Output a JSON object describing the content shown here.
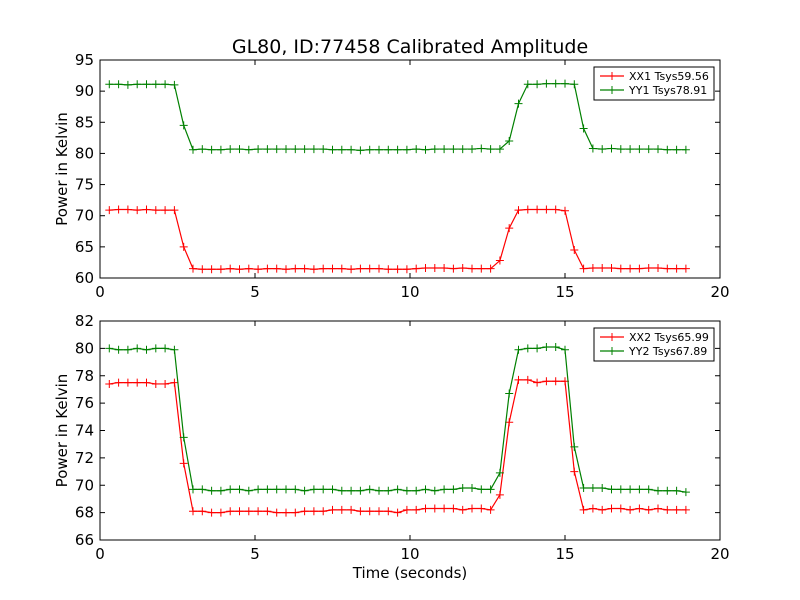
{
  "chart_data": {
    "title": "GL80, ID:77458 Calibrated Amplitude",
    "type": "line",
    "subplots": [
      {
        "type": "line",
        "ylabel": "Power in Kelvin",
        "xlabel": "",
        "xlim": [
          0,
          20
        ],
        "ylim": [
          60,
          95
        ],
        "xticks": [
          0,
          5,
          10,
          15,
          20
        ],
        "yticks": [
          60,
          65,
          70,
          75,
          80,
          85,
          90,
          95
        ],
        "legend_position": "top-right",
        "grid": false,
        "x": [
          0.3,
          0.6,
          0.9,
          1.2,
          1.5,
          1.8,
          2.1,
          2.4,
          2.7,
          3.0,
          3.3,
          3.6,
          3.9,
          4.2,
          4.5,
          4.8,
          5.1,
          5.4,
          5.7,
          6.0,
          6.3,
          6.6,
          6.9,
          7.2,
          7.5,
          7.8,
          8.1,
          8.4,
          8.7,
          9.0,
          9.3,
          9.6,
          9.9,
          10.2,
          10.5,
          10.8,
          11.1,
          11.4,
          11.7,
          12.0,
          12.3,
          12.6,
          12.9,
          13.2,
          13.5,
          13.8,
          14.1,
          14.4,
          14.7,
          15.0,
          15.3,
          15.6,
          15.9,
          16.2,
          16.5,
          16.8,
          17.1,
          17.4,
          17.7,
          18.0,
          18.3,
          18.6,
          18.9
        ],
        "series": [
          {
            "name": "XX1 Tsys59.56",
            "color": "#ff0000",
            "values": [
              70.9,
              71.0,
              71.0,
              70.9,
              71.0,
              70.9,
              70.9,
              70.9,
              65.0,
              61.5,
              61.4,
              61.4,
              61.4,
              61.5,
              61.4,
              61.5,
              61.4,
              61.5,
              61.5,
              61.4,
              61.5,
              61.5,
              61.4,
              61.5,
              61.5,
              61.5,
              61.4,
              61.5,
              61.5,
              61.5,
              61.4,
              61.4,
              61.4,
              61.5,
              61.6,
              61.6,
              61.6,
              61.5,
              61.6,
              61.5,
              61.5,
              61.5,
              62.8,
              68.0,
              70.9,
              71.0,
              71.0,
              71.0,
              71.0,
              70.8,
              64.5,
              61.5,
              61.6,
              61.6,
              61.6,
              61.5,
              61.5,
              61.5,
              61.6,
              61.6,
              61.5,
              61.5,
              61.5
            ]
          },
          {
            "name": "YY1 Tsys78.91",
            "color": "#008000",
            "values": [
              91.1,
              91.1,
              91.0,
              91.1,
              91.1,
              91.1,
              91.1,
              91.0,
              84.5,
              80.6,
              80.7,
              80.6,
              80.6,
              80.7,
              80.7,
              80.6,
              80.7,
              80.7,
              80.7,
              80.7,
              80.7,
              80.7,
              80.7,
              80.7,
              80.6,
              80.6,
              80.6,
              80.5,
              80.6,
              80.6,
              80.6,
              80.6,
              80.6,
              80.7,
              80.6,
              80.7,
              80.7,
              80.7,
              80.7,
              80.7,
              80.8,
              80.7,
              80.7,
              82.0,
              88.0,
              91.1,
              91.1,
              91.2,
              91.2,
              91.2,
              91.1,
              84.0,
              80.8,
              80.7,
              80.8,
              80.7,
              80.7,
              80.7,
              80.7,
              80.7,
              80.6,
              80.6,
              80.6
            ]
          }
        ]
      },
      {
        "type": "line",
        "ylabel": "Power in Kelvin",
        "xlabel": "Time (seconds)",
        "xlim": [
          0,
          20
        ],
        "ylim": [
          66,
          82
        ],
        "xticks": [
          0,
          5,
          10,
          15,
          20
        ],
        "yticks": [
          66,
          68,
          70,
          72,
          74,
          76,
          78,
          80,
          82
        ],
        "legend_position": "top-right",
        "grid": false,
        "x": [
          0.3,
          0.6,
          0.9,
          1.2,
          1.5,
          1.8,
          2.1,
          2.4,
          2.7,
          3.0,
          3.3,
          3.6,
          3.9,
          4.2,
          4.5,
          4.8,
          5.1,
          5.4,
          5.7,
          6.0,
          6.3,
          6.6,
          6.9,
          7.2,
          7.5,
          7.8,
          8.1,
          8.4,
          8.7,
          9.0,
          9.3,
          9.6,
          9.9,
          10.2,
          10.5,
          10.8,
          11.1,
          11.4,
          11.7,
          12.0,
          12.3,
          12.6,
          12.9,
          13.2,
          13.5,
          13.8,
          14.1,
          14.4,
          14.7,
          15.0,
          15.3,
          15.6,
          15.9,
          16.2,
          16.5,
          16.8,
          17.1,
          17.4,
          17.7,
          18.0,
          18.3,
          18.6,
          18.9
        ],
        "series": [
          {
            "name": "XX2 Tsys65.99",
            "color": "#ff0000",
            "values": [
              77.4,
              77.5,
              77.5,
              77.5,
              77.5,
              77.4,
              77.4,
              77.5,
              71.6,
              68.1,
              68.1,
              68.0,
              68.0,
              68.1,
              68.1,
              68.1,
              68.1,
              68.1,
              68.0,
              68.0,
              68.0,
              68.1,
              68.1,
              68.1,
              68.2,
              68.2,
              68.2,
              68.1,
              68.1,
              68.1,
              68.1,
              68.0,
              68.2,
              68.2,
              68.3,
              68.3,
              68.3,
              68.3,
              68.2,
              68.3,
              68.3,
              68.2,
              69.3,
              74.6,
              77.7,
              77.7,
              77.5,
              77.6,
              77.6,
              77.6,
              71.0,
              68.2,
              68.3,
              68.2,
              68.3,
              68.3,
              68.2,
              68.3,
              68.2,
              68.3,
              68.2,
              68.2,
              68.2
            ]
          },
          {
            "name": "YY2 Tsys67.89",
            "color": "#008000",
            "values": [
              80.0,
              79.9,
              79.9,
              80.0,
              79.9,
              80.0,
              80.0,
              79.9,
              73.5,
              69.7,
              69.7,
              69.6,
              69.6,
              69.7,
              69.7,
              69.6,
              69.7,
              69.7,
              69.7,
              69.7,
              69.7,
              69.6,
              69.7,
              69.7,
              69.7,
              69.6,
              69.6,
              69.6,
              69.7,
              69.6,
              69.6,
              69.7,
              69.6,
              69.6,
              69.7,
              69.6,
              69.7,
              69.7,
              69.8,
              69.8,
              69.7,
              69.7,
              70.9,
              76.7,
              79.9,
              80.0,
              80.0,
              80.1,
              80.1,
              79.9,
              72.8,
              69.8,
              69.8,
              69.8,
              69.7,
              69.7,
              69.7,
              69.7,
              69.7,
              69.6,
              69.6,
              69.6,
              69.5
            ]
          }
        ]
      }
    ]
  }
}
